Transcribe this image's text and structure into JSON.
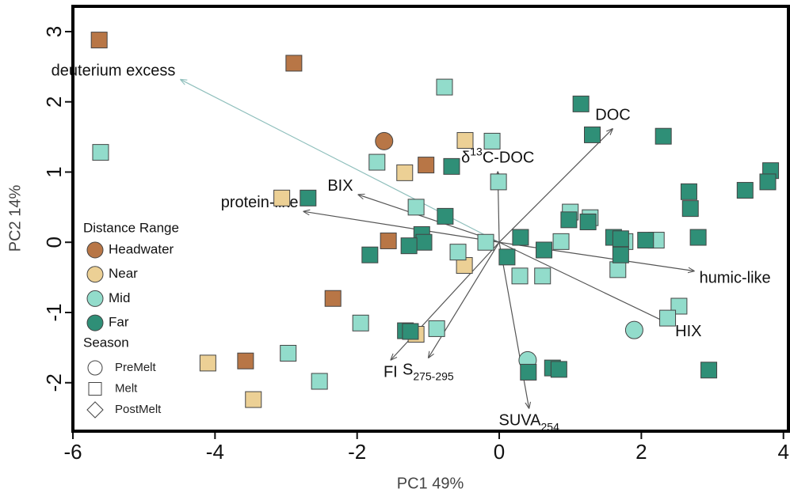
{
  "chart_data": {
    "type": "scatter",
    "xlabel": "PC1 49%",
    "ylabel": "PC2 14%",
    "xlim": [
      -6.0,
      4.07
    ],
    "ylim": [
      -2.69,
      3.36
    ],
    "xticks": [
      -6,
      -4,
      -2,
      0,
      2,
      4
    ],
    "yticks": [
      -2,
      -1,
      0,
      1,
      2,
      3
    ],
    "legend_title": "Distance Range",
    "season_title": "Season",
    "seasons": [
      {
        "name": "PreMelt",
        "shape": "circle"
      },
      {
        "name": "Melt",
        "shape": "square"
      },
      {
        "name": "PostMelt",
        "shape": "diamond"
      }
    ],
    "series": [
      {
        "name": "Headwater",
        "color": "#b87646",
        "x": [
          -5.63,
          -2.89,
          -1.03,
          -1.56,
          -2.34,
          -3.57,
          -1.62
        ],
        "y": [
          2.88,
          2.55,
          1.1,
          0.02,
          -0.8,
          -1.69,
          1.44
        ],
        "shapes": [
          "square",
          "square",
          "square",
          "square",
          "square",
          "square",
          "circle"
        ]
      },
      {
        "name": "Near",
        "color": "#ecd095",
        "x": [
          -0.48,
          -1.33,
          -3.06,
          -0.49,
          -4.1,
          -3.46,
          -1.17
        ],
        "y": [
          1.45,
          0.99,
          0.63,
          -0.33,
          -1.72,
          -2.24,
          -1.31
        ],
        "shapes": [
          "square",
          "square",
          "square",
          "square",
          "square",
          "square",
          "square"
        ]
      },
      {
        "name": "Mid",
        "color": "#92dccb",
        "x": [
          -5.61,
          -0.77,
          -1.72,
          -0.1,
          -0.01,
          -1.17,
          -0.58,
          -0.19,
          0.87,
          1.0,
          1.28,
          0.29,
          0.61,
          1.67,
          1.77,
          2.21,
          2.53,
          2.37,
          -1.95,
          -2.97,
          -2.53,
          -0.88,
          1.9,
          0.4
        ],
        "y": [
          1.28,
          2.21,
          1.14,
          1.44,
          0.86,
          0.5,
          -0.14,
          0.0,
          0.01,
          0.43,
          0.35,
          -0.48,
          -0.48,
          -0.39,
          0.01,
          0.03,
          -0.91,
          -1.08,
          -1.15,
          -1.58,
          -1.98,
          -1.23,
          -1.25,
          -1.68
        ],
        "shapes": [
          "square",
          "square",
          "square",
          "square",
          "square",
          "square",
          "square",
          "square",
          "square",
          "square",
          "square",
          "square",
          "square",
          "square",
          "square",
          "square",
          "square",
          "square",
          "square",
          "square",
          "square",
          "square",
          "circle",
          "circle"
        ]
      },
      {
        "name": "Far",
        "color": "#2f8f77",
        "x": [
          1.15,
          1.31,
          2.31,
          3.82,
          3.78,
          3.46,
          2.67,
          2.69,
          2.8,
          -0.67,
          -2.69,
          -0.76,
          -1.09,
          -1.06,
          -1.27,
          -1.82,
          0.3,
          0.63,
          0.11,
          0.98,
          1.25,
          1.61,
          1.71,
          1.71,
          2.06,
          -1.32,
          -1.25,
          0.41,
          0.75,
          0.84,
          2.95
        ],
        "y": [
          1.97,
          1.53,
          1.51,
          1.02,
          0.86,
          0.74,
          0.72,
          0.48,
          0.07,
          1.08,
          0.63,
          0.37,
          0.11,
          0.0,
          -0.05,
          -0.18,
          0.07,
          -0.11,
          -0.21,
          0.32,
          0.29,
          0.07,
          0.05,
          -0.18,
          0.03,
          -1.26,
          -1.27,
          -1.85,
          -1.79,
          -1.81,
          -1.82
        ],
        "shapes": [
          "square",
          "square",
          "square",
          "square",
          "square",
          "square",
          "square",
          "square",
          "square",
          "square",
          "square",
          "square",
          "square",
          "square",
          "square",
          "square",
          "square",
          "square",
          "square",
          "square",
          "square",
          "square",
          "square",
          "square",
          "square",
          "square",
          "square",
          "square",
          "square",
          "square",
          "square"
        ]
      }
    ],
    "loadings": [
      {
        "label_parts": [
          {
            "text": "deuterium excess"
          }
        ],
        "x": -4.49,
        "y": 2.32,
        "color": "#8fbfbc"
      },
      {
        "label_parts": [
          {
            "text": "DOC"
          }
        ],
        "x": 1.6,
        "y": 1.62,
        "color": "#555555"
      },
      {
        "label_parts": [
          {
            "text": "δ"
          },
          {
            "text": "13",
            "script": "super"
          },
          {
            "text": "C-DOC"
          }
        ],
        "x": -0.02,
        "y": 1.01,
        "color": "#555555"
      },
      {
        "label_parts": [
          {
            "text": "BIX"
          }
        ],
        "x": -1.99,
        "y": 0.68,
        "color": "#555555"
      },
      {
        "label_parts": [
          {
            "text": "protein-like"
          }
        ],
        "x": -2.76,
        "y": 0.44,
        "color": "#555555"
      },
      {
        "label_parts": [
          {
            "text": "humic-like"
          }
        ],
        "x": 2.75,
        "y": -0.41,
        "color": "#555555"
      },
      {
        "label_parts": [
          {
            "text": "HIX"
          }
        ],
        "x": 2.41,
        "y": -1.17,
        "color": "#555555"
      },
      {
        "label_parts": [
          {
            "text": "FI"
          }
        ],
        "x": -1.53,
        "y": -1.68,
        "color": "#555555"
      },
      {
        "label_parts": [
          {
            "text": "S"
          },
          {
            "text": "275-295",
            "script": "sub"
          }
        ],
        "x": -1.0,
        "y": -1.65,
        "color": "#555555"
      },
      {
        "label_parts": [
          {
            "text": "SUVA"
          },
          {
            "text": "254",
            "script": "sub"
          }
        ],
        "x": 0.42,
        "y": -2.37,
        "color": "#555555"
      }
    ]
  }
}
